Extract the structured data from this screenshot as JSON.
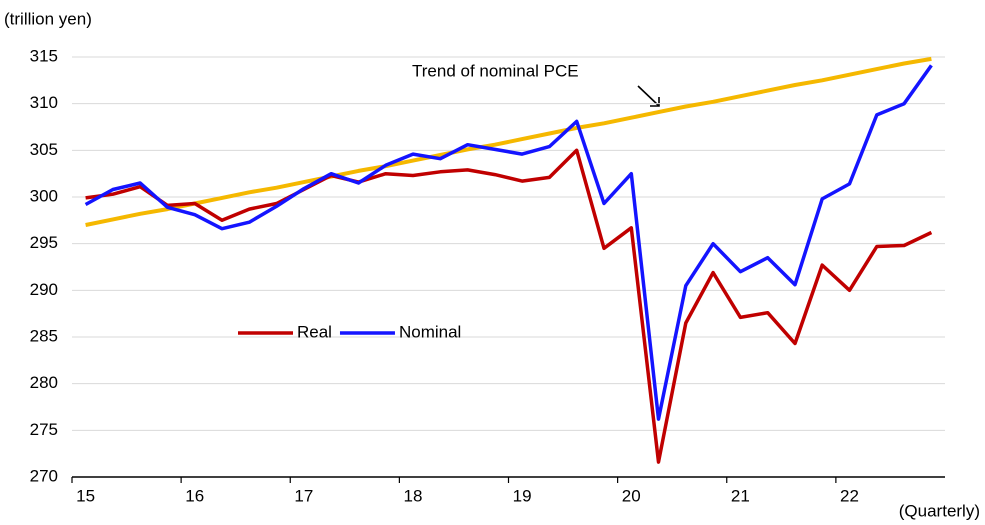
{
  "chart_data": {
    "type": "line",
    "y_label": "(trillion yen)",
    "x_label": "(Quarterly)",
    "categories": [
      "15",
      null,
      null,
      null,
      "16",
      null,
      null,
      null,
      "17",
      null,
      null,
      null,
      "18",
      null,
      null,
      null,
      "19",
      null,
      null,
      null,
      "20",
      null,
      null,
      null,
      "21",
      null,
      null,
      null,
      "22",
      null,
      null,
      null
    ],
    "series": [
      {
        "name": "Real",
        "color": "#c00000",
        "values": [
          299.9,
          300.3,
          301.1,
          299.1,
          299.3,
          297.5,
          298.7,
          299.3,
          300.8,
          302.3,
          301.6,
          302.5,
          302.3,
          302.7,
          302.9,
          302.4,
          301.7,
          302.1,
          305.0,
          294.5,
          296.7,
          271.6,
          286.5,
          291.9,
          287.1,
          287.6,
          284.3,
          292.7,
          290.0,
          294.7,
          294.8,
          296.2
        ]
      },
      {
        "name": "Nominal",
        "color": "#1414ff",
        "values": [
          299.2,
          300.8,
          301.5,
          298.9,
          298.1,
          296.6,
          297.3,
          299.0,
          300.9,
          302.5,
          301.5,
          303.4,
          304.6,
          304.1,
          305.6,
          305.1,
          304.6,
          305.4,
          308.1,
          299.3,
          302.5,
          276.2,
          290.5,
          295.0,
          292.0,
          293.5,
          290.6,
          299.8,
          301.4,
          308.8,
          310.0,
          314.1
        ]
      }
    ],
    "trend": {
      "label": "Trend of nominal PCE",
      "color": "#f5b800",
      "values": [
        297.0,
        297.6,
        298.2,
        298.7,
        299.3,
        299.9,
        300.5,
        301.0,
        301.6,
        302.2,
        302.8,
        303.3,
        303.9,
        304.5,
        305.1,
        305.6,
        306.2,
        306.8,
        307.4,
        307.9,
        308.5,
        309.1,
        309.7,
        310.2,
        310.8,
        311.4,
        312.0,
        312.5,
        313.1,
        313.7,
        314.3,
        314.8
      ]
    },
    "ylim": [
      270,
      315
    ],
    "yticks": [
      270,
      275,
      280,
      285,
      290,
      295,
      300,
      305,
      310,
      315
    ],
    "grid": true
  }
}
